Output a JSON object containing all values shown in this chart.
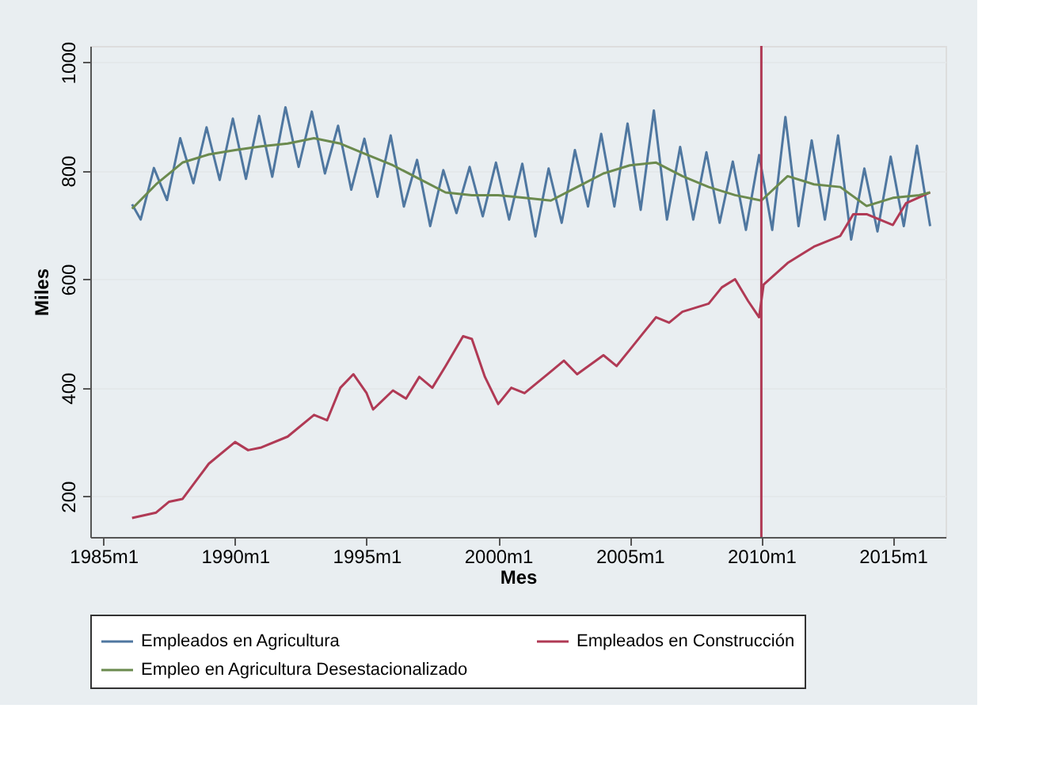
{
  "chart_data": {
    "type": "line",
    "xlabel": "Mes",
    "ylabel": "Miles",
    "xlim": [
      "1984-07",
      "2017-01"
    ],
    "ylim": [
      125,
      1030
    ],
    "xticks": [
      {
        "value": "1985-01",
        "label": "1985m1"
      },
      {
        "value": "1990-01",
        "label": "1990m1"
      },
      {
        "value": "1995-01",
        "label": "1995m1"
      },
      {
        "value": "2000-01",
        "label": "2000m1"
      },
      {
        "value": "2005-01",
        "label": "2005m1"
      },
      {
        "value": "2010-01",
        "label": "2010m1"
      },
      {
        "value": "2015-01",
        "label": "2015m1"
      }
    ],
    "yticks": [
      200,
      400,
      600,
      800,
      1000
    ],
    "grid": "y",
    "legend": "bottom",
    "line_style": "solid",
    "marker": "none",
    "ref_lines": [
      {
        "axis": "x",
        "value": "2010-01",
        "label": null,
        "color": "#b03a55"
      }
    ],
    "series": [
      {
        "name": "Empleados en Agricultura",
        "color": "#4f77a0",
        "x": [
          "1986-02",
          "1986-06",
          "1986-12",
          "1987-06",
          "1987-12",
          "1988-06",
          "1988-12",
          "1989-06",
          "1989-12",
          "1990-06",
          "1990-12",
          "1991-06",
          "1991-12",
          "1992-06",
          "1992-12",
          "1993-06",
          "1993-12",
          "1994-06",
          "1994-12",
          "1995-06",
          "1995-12",
          "1996-06",
          "1996-12",
          "1997-06",
          "1997-12",
          "1998-06",
          "1998-12",
          "1999-06",
          "1999-12",
          "2000-06",
          "2000-12",
          "2001-06",
          "2001-12",
          "2002-06",
          "2002-12",
          "2003-06",
          "2003-12",
          "2004-06",
          "2004-12",
          "2005-06",
          "2005-12",
          "2006-06",
          "2006-12",
          "2007-06",
          "2007-12",
          "2008-06",
          "2008-12",
          "2009-06",
          "2009-12",
          "2010-06",
          "2010-12",
          "2011-06",
          "2011-12",
          "2012-06",
          "2012-12",
          "2013-06",
          "2013-12",
          "2014-06",
          "2014-12",
          "2015-06",
          "2015-12",
          "2016-06"
        ],
        "values": [
          738,
          710,
          805,
          746,
          860,
          777,
          880,
          783,
          896,
          785,
          901,
          789,
          917,
          807,
          909,
          795,
          883,
          765,
          859,
          752,
          865,
          734,
          820,
          698,
          801,
          722,
          807,
          716,
          815,
          710,
          813,
          679,
          804,
          704,
          838,
          734,
          868,
          734,
          887,
          728,
          911,
          710,
          844,
          710,
          834,
          704,
          817,
          691,
          829,
          691,
          899,
          698,
          856,
          710,
          865,
          673,
          804,
          688,
          826,
          698,
          846,
          698
        ]
      },
      {
        "name": "Empleados en Construcción",
        "color": "#b03a55",
        "x": [
          "1986-02",
          "1987-01",
          "1987-07",
          "1988-01",
          "1989-01",
          "1990-01",
          "1990-07",
          "1991-01",
          "1992-01",
          "1993-01",
          "1993-07",
          "1994-01",
          "1994-07",
          "1995-01",
          "1995-04",
          "1996-01",
          "1996-07",
          "1997-01",
          "1997-07",
          "1998-01",
          "1998-09",
          "1999-01",
          "1999-07",
          "2000-01",
          "2000-07",
          "2001-01",
          "2002-01",
          "2002-07",
          "2003-01",
          "2004-01",
          "2004-07",
          "2005-01",
          "2005-07",
          "2006-01",
          "2006-07",
          "2007-01",
          "2008-01",
          "2008-07",
          "2009-01",
          "2009-07",
          "2009-12",
          "2010-02",
          "2011-01",
          "2012-01",
          "2013-01",
          "2013-07",
          "2014-01",
          "2015-01",
          "2015-07",
          "2016-06"
        ],
        "values": [
          160,
          170,
          190,
          195,
          260,
          300,
          285,
          290,
          310,
          350,
          340,
          400,
          425,
          390,
          360,
          395,
          380,
          420,
          400,
          440,
          495,
          490,
          420,
          370,
          400,
          390,
          430,
          450,
          425,
          460,
          440,
          470,
          500,
          530,
          520,
          540,
          555,
          585,
          600,
          560,
          530,
          590,
          630,
          660,
          680,
          720,
          720,
          700,
          740,
          760
        ]
      },
      {
        "name": "Empleo en Agricultura Desestacionalizado",
        "color": "#6b8a4e",
        "x": [
          "1986-02",
          "1987-01",
          "1988-01",
          "1989-01",
          "1990-01",
          "1991-01",
          "1992-01",
          "1993-01",
          "1994-01",
          "1995-01",
          "1996-01",
          "1997-01",
          "1998-01",
          "1999-01",
          "2000-01",
          "2001-01",
          "2002-01",
          "2003-01",
          "2004-01",
          "2005-01",
          "2006-01",
          "2007-01",
          "2008-01",
          "2009-01",
          "2010-01",
          "2011-01",
          "2012-01",
          "2013-01",
          "2014-01",
          "2015-01",
          "2016-01",
          "2016-06"
        ],
        "values": [
          730,
          775,
          815,
          830,
          838,
          845,
          850,
          860,
          850,
          830,
          810,
          785,
          760,
          755,
          755,
          750,
          745,
          770,
          795,
          810,
          815,
          790,
          770,
          755,
          745,
          790,
          775,
          770,
          735,
          750,
          755,
          760
        ]
      }
    ]
  }
}
